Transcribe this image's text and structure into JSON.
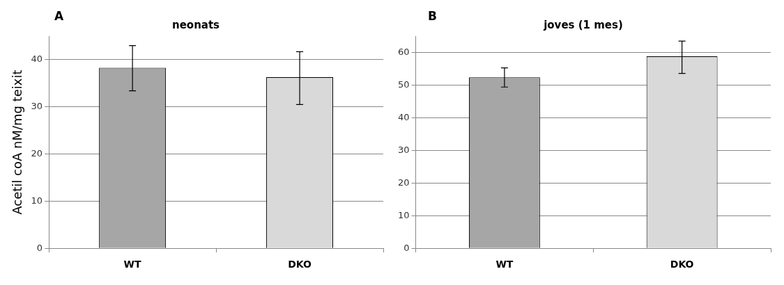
{
  "chart_data": [
    {
      "type": "bar",
      "title": "neonats",
      "ylabel": "Acetil coA nM/mg teixit",
      "annotations": [
        "A"
      ],
      "categories": [
        "WT",
        "DKO"
      ],
      "values": [
        38.3,
        36.3
      ],
      "colors": [
        "#a6a6a6",
        "#d9d9d9"
      ],
      "errors": [
        [
          33.4,
          43.0
        ],
        [
          30.5,
          41.7
        ]
      ],
      "ylim": [
        0,
        45
      ],
      "yticks": [
        0,
        10,
        20,
        30,
        40
      ],
      "grid": "y",
      "legend": false
    },
    {
      "type": "bar",
      "title": "joves (1 mes)",
      "annotations": [
        "B"
      ],
      "categories": [
        "WT",
        "DKO"
      ],
      "values": [
        52.4,
        58.8
      ],
      "colors": [
        "#a6a6a6",
        "#d9d9d9"
      ],
      "errors": [
        [
          49.4,
          55.3
        ],
        [
          53.6,
          63.5
        ]
      ],
      "ylim": [
        0,
        65
      ],
      "yticks": [
        0,
        10,
        20,
        30,
        40,
        50,
        60
      ],
      "grid": "y",
      "legend": false
    }
  ]
}
